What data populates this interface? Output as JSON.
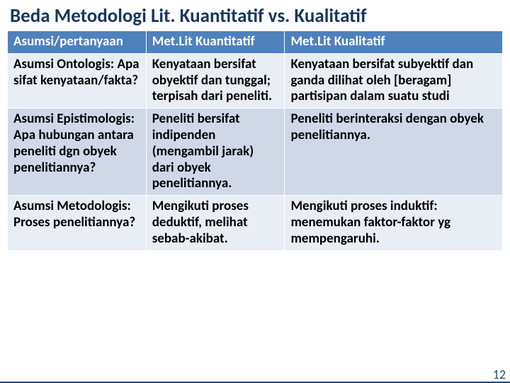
{
  "title": "Beda Metodologi Lit. Kuantitatif vs. Kualitatif",
  "title_fontsize": 27,
  "title_color": "#17375e",
  "table": {
    "col_widths_pct": [
      28,
      28,
      44
    ],
    "header_bg": "#4f81bd",
    "header_fg": "#ffffff",
    "row_odd_bg": "#e9edf4",
    "row_even_bg": "#d0d8e8",
    "border_color": "#ffffff",
    "header_fontsize": 19,
    "body_fontsize": 19,
    "columns": [
      "Asumsi/pertanyaan",
      "Met.Lit Kuantitatif",
      "Met.Lit Kualitatif"
    ],
    "rows": [
      [
        "Asumsi Ontologis: Apa sifat kenyataan/fakta?",
        "Kenyataan bersifat obyektif dan tunggal; terpisah dari peneliti.",
        "Kenyataan bersifat subyektif dan ganda dilihat oleh [beragam] partisipan dalam suatu studi"
      ],
      [
        "Asumsi Epistimologis: Apa hubungan antara peneliti dgn obyek penelitiannya?",
        "Peneliti bersifat indipenden (mengambil jarak) dari obyek penelitiannya.",
        "Peneliti berinteraksi dengan obyek penelitiannya."
      ],
      [
        "Asumsi Metodologis: Proses penelitiannya?",
        "Mengikuti proses deduktif, melihat sebab-akibat.",
        "Mengikuti proses induktif: menemukan faktor-faktor yg mempengaruhi."
      ]
    ]
  },
  "page_number": "12",
  "pagenum_color": "#1f497d",
  "pagenum_fontsize": 18,
  "bottom_bar_color": "#1f497d"
}
